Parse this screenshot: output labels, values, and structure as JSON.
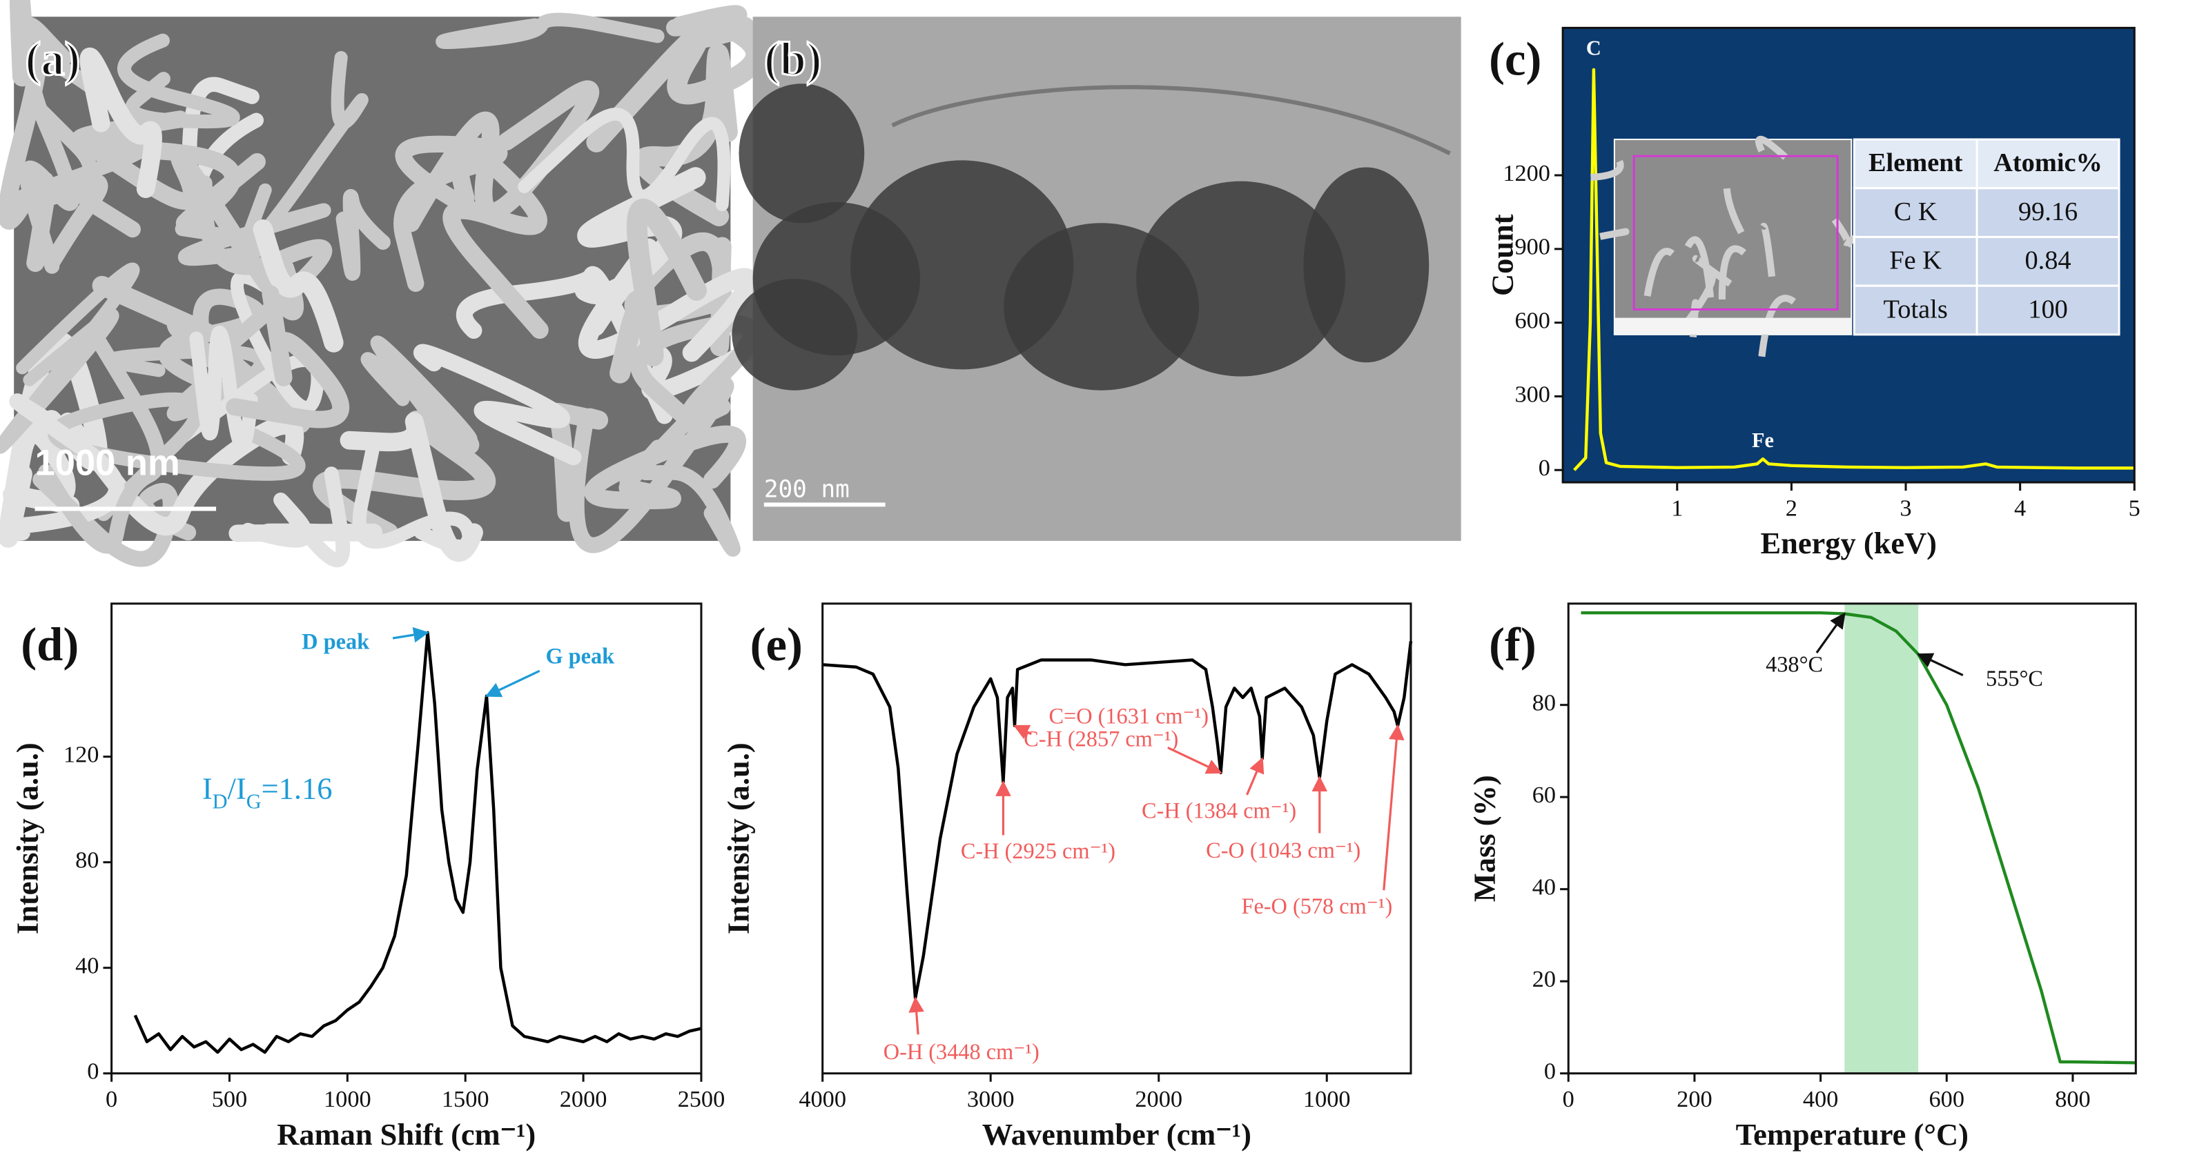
{
  "chart_data": [
    {
      "type": "image",
      "label": "(a)",
      "scale_bar": "1000 nm"
    },
    {
      "type": "image",
      "label": "(b)",
      "scale_bar": "200 nm"
    },
    {
      "type": "line",
      "label": "(c)",
      "xlabel": "Energy (keV)",
      "ylabel": "Count",
      "color": "#ffff00",
      "background": "#0b3a6f",
      "xlim": [
        0,
        5
      ],
      "ylim": [
        -50,
        1800
      ],
      "xticks": [
        1,
        2,
        3,
        4,
        5
      ],
      "yticks": [
        0,
        300,
        600,
        900,
        1200
      ],
      "x": [
        0.1,
        0.2,
        0.24,
        0.27,
        0.3,
        0.33,
        0.38,
        0.5,
        1,
        1.5,
        1.7,
        1.75,
        1.8,
        2,
        2.5,
        3,
        3.5,
        3.7,
        3.8,
        4.5,
        5
      ],
      "values": [
        0,
        50,
        600,
        1630,
        900,
        150,
        30,
        15,
        10,
        12,
        25,
        45,
        25,
        18,
        12,
        10,
        12,
        25,
        12,
        8,
        8
      ],
      "annotations": [
        {
          "text": "C",
          "x": 0.27,
          "y": 1630
        },
        {
          "text": "Fe",
          "x": 1.75,
          "y": 45
        }
      ],
      "inset_table": {
        "header": [
          "Element",
          "Atomic%"
        ],
        "rows": [
          [
            "C K",
            "99.16"
          ],
          [
            "Fe K",
            "0.84"
          ],
          [
            "Totals",
            "100"
          ]
        ]
      }
    },
    {
      "type": "line",
      "label": "(d)",
      "xlabel": "Raman Shift (cm⁻¹)",
      "ylabel": "Intensity (a.u.)",
      "color": "#000000",
      "xlim": [
        0,
        2500
      ],
      "ylim": [
        0,
        178
      ],
      "xticks": [
        0,
        500,
        1000,
        1500,
        2000,
        2500
      ],
      "yticks": [
        0,
        40,
        80,
        120
      ],
      "x": [
        100,
        150,
        200,
        250,
        300,
        350,
        400,
        450,
        500,
        550,
        600,
        650,
        700,
        750,
        800,
        850,
        900,
        950,
        1000,
        1050,
        1100,
        1150,
        1200,
        1250,
        1300,
        1340,
        1370,
        1400,
        1430,
        1460,
        1490,
        1520,
        1550,
        1590,
        1620,
        1650,
        1700,
        1750,
        1800,
        1850,
        1900,
        1950,
        2000,
        2050,
        2100,
        2150,
        2200,
        2250,
        2300,
        2350,
        2400,
        2450,
        2500
      ],
      "values": [
        22,
        12,
        15,
        9,
        14,
        10,
        12,
        8,
        13,
        9,
        11,
        8,
        14,
        12,
        15,
        14,
        18,
        20,
        24,
        27,
        33,
        40,
        52,
        75,
        125,
        167,
        140,
        100,
        80,
        66,
        61,
        80,
        115,
        143,
        100,
        40,
        18,
        14,
        13,
        12,
        14,
        13,
        12,
        14,
        12,
        15,
        13,
        14,
        13,
        15,
        14,
        16,
        17
      ],
      "annotations": [
        {
          "text": "D peak",
          "x": 1340,
          "y": 167
        },
        {
          "text": "G peak",
          "x": 1590,
          "y": 143
        }
      ],
      "annotation_color": "#1e9bd7",
      "ratio_label": [
        "I",
        "D",
        "/I",
        "G",
        "=1.16"
      ]
    },
    {
      "type": "line",
      "label": "(e)",
      "xlabel": "Wavenumber (cm⁻¹)",
      "ylabel": "Intensity (a.u.)",
      "color": "#000000",
      "xlim": [
        4000,
        500
      ],
      "ylim": [
        0,
        100
      ],
      "xticks": [
        4000,
        3000,
        2000,
        1000
      ],
      "x": [
        4000,
        3800,
        3700,
        3600,
        3550,
        3500,
        3448,
        3400,
        3300,
        3200,
        3100,
        3000,
        2960,
        2925,
        2900,
        2870,
        2857,
        2840,
        2700,
        2400,
        2200,
        2000,
        1800,
        1720,
        1680,
        1650,
        1631,
        1600,
        1550,
        1500,
        1450,
        1400,
        1384,
        1360,
        1250,
        1150,
        1080,
        1043,
        1000,
        950,
        850,
        750,
        650,
        600,
        578,
        540,
        500
      ],
      "values": [
        87,
        86.5,
        85,
        78,
        65,
        40,
        16,
        25,
        50,
        68,
        78,
        84,
        80,
        62,
        80,
        82,
        74,
        86,
        88,
        88,
        87,
        87.5,
        88,
        86,
        78,
        70,
        64,
        78,
        82,
        80,
        82,
        76,
        67,
        80,
        82,
        78,
        72,
        63,
        75,
        85,
        87,
        85,
        80,
        77,
        74,
        80,
        92
      ],
      "annotation_color": "#f25c5c",
      "annotations": [
        {
          "text": "O-H (3448 cm⁻¹)",
          "x": 3448,
          "y": 16
        },
        {
          "text": "C-H (2925 cm⁻¹)",
          "x": 2925,
          "y": 62
        },
        {
          "text": "C-H (2857 cm⁻¹)",
          "x": 2857,
          "y": 74
        },
        {
          "text": "C=O (1631 cm⁻¹)",
          "x": 1631,
          "y": 64
        },
        {
          "text": "C-H (1384 cm⁻¹)",
          "x": 1384,
          "y": 67
        },
        {
          "text": "C-O (1043 cm⁻¹)",
          "x": 1043,
          "y": 63
        },
        {
          "text": "Fe-O (578 cm⁻¹)",
          "x": 578,
          "y": 74
        }
      ]
    },
    {
      "type": "line",
      "label": "(f)",
      "xlabel": "Temperature (°C)",
      "ylabel": "Mass (%)",
      "color": "#1f8a1f",
      "shade_color": "#bde8c6",
      "xlim": [
        0,
        900
      ],
      "ylim": [
        0,
        102
      ],
      "xticks": [
        0,
        200,
        400,
        600,
        800
      ],
      "yticks": [
        0,
        20,
        40,
        60,
        80
      ],
      "x": [
        20,
        400,
        438,
        480,
        520,
        555,
        600,
        650,
        700,
        750,
        780,
        800,
        900
      ],
      "values": [
        100,
        100,
        99.8,
        99,
        96,
        91,
        80,
        62,
        40,
        18,
        2.5,
        2.5,
        2.3
      ],
      "annotation_color": "#111111",
      "annotations": [
        {
          "text": "438°C",
          "x": 438,
          "y": 99.8
        },
        {
          "text": "555°C",
          "x": 555,
          "y": 91
        }
      ]
    }
  ]
}
